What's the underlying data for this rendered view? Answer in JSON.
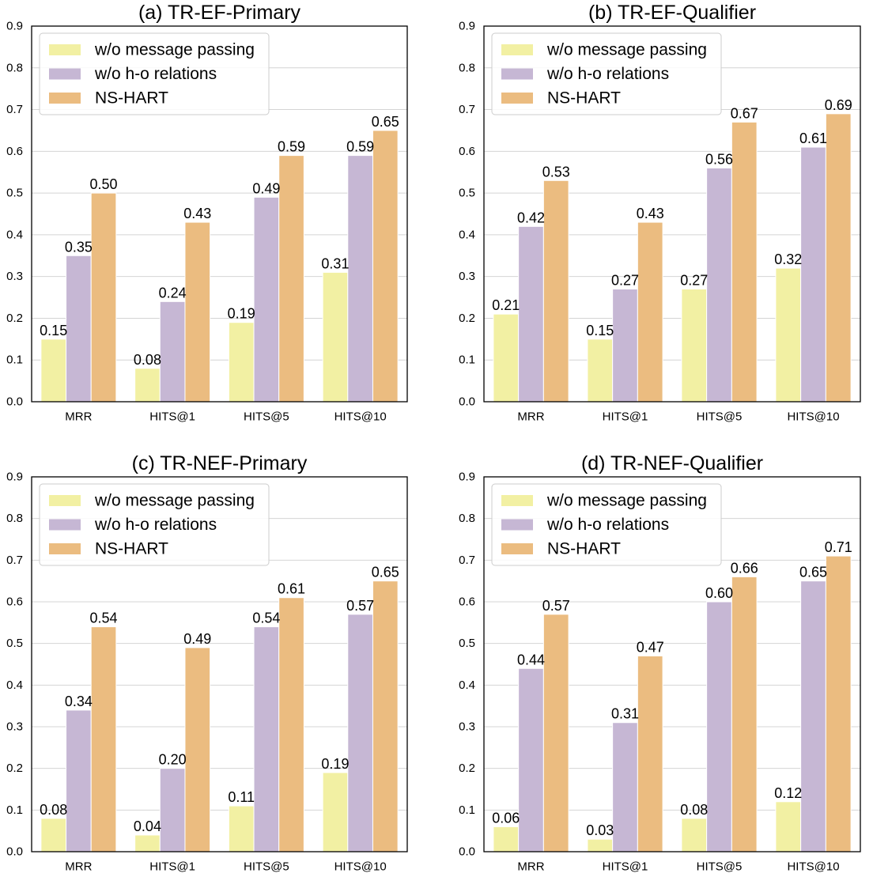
{
  "chart_data": [
    {
      "type": "bar",
      "title": "(a) TR-EF-Primary",
      "categories": [
        "MRR",
        "HITS@1",
        "HITS@5",
        "HITS@10"
      ],
      "series": [
        {
          "name": "w/o message passing",
          "color": "#f2f0a3",
          "values": [
            0.15,
            0.08,
            0.19,
            0.31
          ]
        },
        {
          "name": "w/o h-o relations",
          "color": "#c6b7d4",
          "values": [
            0.35,
            0.24,
            0.49,
            0.59
          ]
        },
        {
          "name": "NS-HART",
          "color": "#ebbc80",
          "values": [
            0.5,
            0.43,
            0.59,
            0.65
          ]
        }
      ],
      "xlabel": "",
      "ylabel": "",
      "ylim": [
        0,
        0.9
      ],
      "yticks": [
        0.0,
        0.1,
        0.2,
        0.3,
        0.4,
        0.5,
        0.6,
        0.7,
        0.8,
        0.9
      ],
      "grid": true,
      "legend": "top-left",
      "value_labels": true
    },
    {
      "type": "bar",
      "title": "(b) TR-EF-Qualifier",
      "categories": [
        "MRR",
        "HITS@1",
        "HITS@5",
        "HITS@10"
      ],
      "series": [
        {
          "name": "w/o message passing",
          "color": "#f2f0a3",
          "values": [
            0.21,
            0.15,
            0.27,
            0.32
          ]
        },
        {
          "name": "w/o h-o relations",
          "color": "#c6b7d4",
          "values": [
            0.42,
            0.27,
            0.56,
            0.61
          ]
        },
        {
          "name": "NS-HART",
          "color": "#ebbc80",
          "values": [
            0.53,
            0.43,
            0.67,
            0.69
          ]
        }
      ],
      "xlabel": "",
      "ylabel": "",
      "ylim": [
        0,
        0.9
      ],
      "yticks": [
        0.0,
        0.1,
        0.2,
        0.3,
        0.4,
        0.5,
        0.6,
        0.7,
        0.8,
        0.9
      ],
      "grid": true,
      "legend": "top-left",
      "value_labels": true
    },
    {
      "type": "bar",
      "title": "(c) TR-NEF-Primary",
      "categories": [
        "MRR",
        "HITS@1",
        "HITS@5",
        "HITS@10"
      ],
      "series": [
        {
          "name": "w/o message passing",
          "color": "#f2f0a3",
          "values": [
            0.08,
            0.04,
            0.11,
            0.19
          ]
        },
        {
          "name": "w/o h-o relations",
          "color": "#c6b7d4",
          "values": [
            0.34,
            0.2,
            0.54,
            0.57
          ]
        },
        {
          "name": "NS-HART",
          "color": "#ebbc80",
          "values": [
            0.54,
            0.49,
            0.61,
            0.65
          ]
        }
      ],
      "xlabel": "",
      "ylabel": "",
      "ylim": [
        0,
        0.9
      ],
      "yticks": [
        0.0,
        0.1,
        0.2,
        0.3,
        0.4,
        0.5,
        0.6,
        0.7,
        0.8,
        0.9
      ],
      "grid": true,
      "legend": "top-left",
      "value_labels": true
    },
    {
      "type": "bar",
      "title": "(d) TR-NEF-Qualifier",
      "categories": [
        "MRR",
        "HITS@1",
        "HITS@5",
        "HITS@10"
      ],
      "series": [
        {
          "name": "w/o message passing",
          "color": "#f2f0a3",
          "values": [
            0.06,
            0.03,
            0.08,
            0.12
          ]
        },
        {
          "name": "w/o h-o relations",
          "color": "#c6b7d4",
          "values": [
            0.44,
            0.31,
            0.6,
            0.65
          ]
        },
        {
          "name": "NS-HART",
          "color": "#ebbc80",
          "values": [
            0.57,
            0.47,
            0.66,
            0.71
          ]
        }
      ],
      "xlabel": "",
      "ylabel": "",
      "ylim": [
        0,
        0.9
      ],
      "yticks": [
        0.0,
        0.1,
        0.2,
        0.3,
        0.4,
        0.5,
        0.6,
        0.7,
        0.8,
        0.9
      ],
      "grid": true,
      "legend": "top-left",
      "value_labels": true
    }
  ]
}
